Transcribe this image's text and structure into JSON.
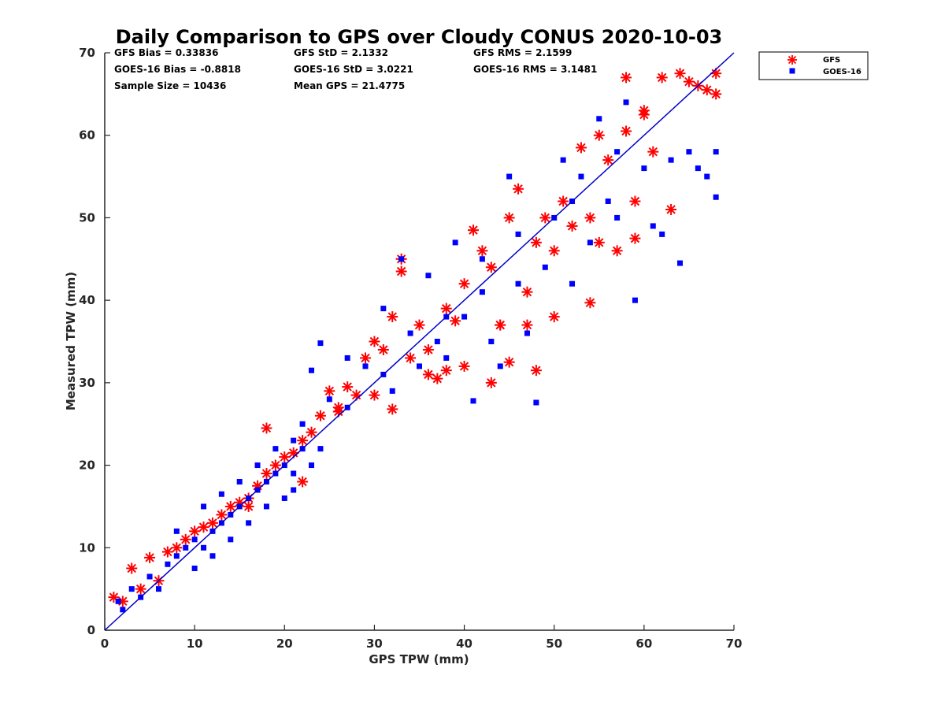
{
  "chart_data": {
    "type": "scatter",
    "title": "Daily Comparison to GPS over Cloudy CONUS 2020-10-03",
    "xlabel": "GPS TPW (mm)",
    "ylabel": "Measured TPW (mm)",
    "xlim": [
      0,
      70
    ],
    "ylim": [
      0,
      70
    ],
    "xticks": [
      "0",
      "10",
      "20",
      "30",
      "40",
      "50",
      "60",
      "70"
    ],
    "yticks": [
      "0",
      "10",
      "20",
      "30",
      "40",
      "50",
      "60",
      "70"
    ],
    "grid": false,
    "legend_position": "outside top-right",
    "reference_line": {
      "x": [
        0,
        70
      ],
      "y": [
        0,
        70
      ],
      "color": "#0000cc"
    },
    "stats": [
      "GFS Bias = 0.33836",
      "GFS StD = 2.1332",
      "GFS RMS = 2.1599",
      "GOES-16 Bias = -0.8818",
      "GOES-16 StD = 3.0221",
      "GOES-16 RMS = 3.1481",
      "Sample Size = 10436",
      "Mean GPS = 21.4775"
    ],
    "series": [
      {
        "name": "GFS",
        "marker": "asterisk",
        "color": "#ff0000",
        "points": [
          [
            1,
            4
          ],
          [
            2,
            3.5
          ],
          [
            3,
            7.5
          ],
          [
            4,
            5
          ],
          [
            5,
            8.8
          ],
          [
            6,
            6
          ],
          [
            7,
            9.5
          ],
          [
            8,
            10
          ],
          [
            9,
            11
          ],
          [
            10,
            12
          ],
          [
            11,
            12.5
          ],
          [
            12,
            13
          ],
          [
            13,
            14
          ],
          [
            14,
            15
          ],
          [
            15,
            15.5
          ],
          [
            16,
            16
          ],
          [
            17,
            17.5
          ],
          [
            18,
            19
          ],
          [
            18,
            24.5
          ],
          [
            19,
            20
          ],
          [
            20,
            21
          ],
          [
            21,
            21.5
          ],
          [
            22,
            23
          ],
          [
            23,
            24
          ],
          [
            24,
            26
          ],
          [
            25,
            29
          ],
          [
            26,
            27
          ],
          [
            27,
            29.5
          ],
          [
            28,
            28.5
          ],
          [
            29,
            33
          ],
          [
            30,
            28.5
          ],
          [
            31,
            34
          ],
          [
            32,
            26.8
          ],
          [
            32,
            38
          ],
          [
            33,
            43.5
          ],
          [
            33,
            45
          ],
          [
            34,
            33
          ],
          [
            35,
            37
          ],
          [
            36,
            31
          ],
          [
            37,
            30.5
          ],
          [
            38,
            39
          ],
          [
            38,
            31.5
          ],
          [
            39,
            37.5
          ],
          [
            40,
            42
          ],
          [
            40,
            32
          ],
          [
            41,
            48.5
          ],
          [
            42,
            46
          ],
          [
            43,
            30
          ],
          [
            43,
            44
          ],
          [
            44,
            37
          ],
          [
            45,
            32.5
          ],
          [
            45,
            50
          ],
          [
            46,
            53.5
          ],
          [
            47,
            41
          ],
          [
            48,
            47
          ],
          [
            48,
            31.5
          ],
          [
            49,
            50
          ],
          [
            50,
            46
          ],
          [
            50,
            38
          ],
          [
            51,
            52
          ],
          [
            52,
            49
          ],
          [
            53,
            58.5
          ],
          [
            54,
            39.7
          ],
          [
            54,
            50
          ],
          [
            55,
            60
          ],
          [
            56,
            57
          ],
          [
            57,
            46
          ],
          [
            58,
            60.5
          ],
          [
            59,
            52
          ],
          [
            59,
            47.5
          ],
          [
            60,
            63
          ],
          [
            61,
            58
          ],
          [
            62,
            67
          ],
          [
            63,
            51
          ],
          [
            64,
            67.5
          ],
          [
            65,
            66.5
          ],
          [
            66,
            66
          ],
          [
            67,
            65.5
          ],
          [
            68,
            65
          ],
          [
            68,
            67.5
          ],
          [
            58,
            67
          ],
          [
            60,
            62.5
          ],
          [
            55,
            47
          ],
          [
            47,
            37
          ],
          [
            44,
            37
          ],
          [
            36,
            34
          ],
          [
            30,
            35
          ],
          [
            26,
            26.5
          ],
          [
            22,
            18
          ],
          [
            16,
            15
          ]
        ]
      },
      {
        "name": "GOES-16",
        "marker": "square",
        "color": "#0000ff",
        "points": [
          [
            1.5,
            3.5
          ],
          [
            2,
            2.5
          ],
          [
            3,
            5
          ],
          [
            4,
            4
          ],
          [
            5,
            6.5
          ],
          [
            6,
            5
          ],
          [
            7,
            8
          ],
          [
            8,
            9
          ],
          [
            8,
            12
          ],
          [
            9,
            10
          ],
          [
            10,
            11
          ],
          [
            10,
            7.5
          ],
          [
            11,
            10
          ],
          [
            11,
            15
          ],
          [
            12,
            12
          ],
          [
            12,
            9
          ],
          [
            13,
            13
          ],
          [
            13,
            16.5
          ],
          [
            14,
            14
          ],
          [
            14,
            11
          ],
          [
            15,
            15
          ],
          [
            15,
            18
          ],
          [
            16,
            16
          ],
          [
            16,
            13
          ],
          [
            17,
            17
          ],
          [
            17,
            20
          ],
          [
            18,
            18
          ],
          [
            18,
            15
          ],
          [
            19,
            19
          ],
          [
            19,
            22
          ],
          [
            20,
            20
          ],
          [
            20,
            16
          ],
          [
            21,
            23
          ],
          [
            21,
            17
          ],
          [
            22,
            22
          ],
          [
            22,
            25
          ],
          [
            23,
            20
          ],
          [
            23,
            31.5
          ],
          [
            24,
            34.8
          ],
          [
            24,
            22
          ],
          [
            25,
            28
          ],
          [
            27,
            33
          ],
          [
            29,
            32
          ],
          [
            31,
            39
          ],
          [
            32,
            29
          ],
          [
            33,
            45
          ],
          [
            34,
            36
          ],
          [
            35,
            32
          ],
          [
            36,
            43
          ],
          [
            37,
            35
          ],
          [
            38,
            33
          ],
          [
            39,
            47
          ],
          [
            40,
            38
          ],
          [
            41,
            27.8
          ],
          [
            42,
            41
          ],
          [
            43,
            35
          ],
          [
            44,
            32
          ],
          [
            45,
            55
          ],
          [
            46,
            48
          ],
          [
            47,
            36
          ],
          [
            48,
            27.6
          ],
          [
            49,
            44
          ],
          [
            50,
            50
          ],
          [
            51,
            57
          ],
          [
            52,
            42
          ],
          [
            53,
            55
          ],
          [
            54,
            47
          ],
          [
            55,
            62
          ],
          [
            56,
            52
          ],
          [
            57,
            50
          ],
          [
            58,
            64
          ],
          [
            59,
            40
          ],
          [
            60,
            56
          ],
          [
            61,
            49
          ],
          [
            62,
            48
          ],
          [
            63,
            57
          ],
          [
            64,
            44.5
          ],
          [
            65,
            58
          ],
          [
            66,
            56
          ],
          [
            67,
            55
          ],
          [
            68,
            58
          ],
          [
            68,
            52.5
          ],
          [
            57,
            58
          ],
          [
            52,
            52
          ],
          [
            46,
            42
          ],
          [
            42,
            45
          ],
          [
            38,
            38
          ],
          [
            31,
            31
          ],
          [
            27,
            27
          ],
          [
            21,
            19
          ]
        ]
      }
    ]
  }
}
